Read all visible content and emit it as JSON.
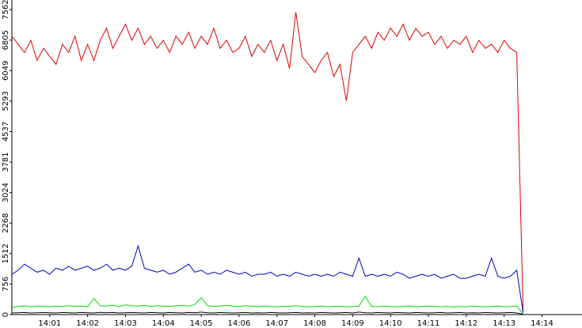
{
  "chart_data": {
    "type": "line",
    "categories": [
      null,
      null,
      null,
      null,
      null,
      null,
      "14:01",
      null,
      null,
      null,
      null,
      null,
      "14:02",
      null,
      null,
      null,
      null,
      null,
      "14:03",
      null,
      null,
      null,
      null,
      null,
      "14:04",
      null,
      null,
      null,
      null,
      null,
      "14:05",
      null,
      null,
      null,
      null,
      null,
      "14:06",
      null,
      null,
      null,
      null,
      null,
      "14:07",
      null,
      null,
      null,
      null,
      null,
      "14:08",
      null,
      null,
      null,
      null,
      null,
      "14:09",
      null,
      null,
      null,
      null,
      null,
      "14:10",
      null,
      null,
      null,
      null,
      null,
      "14:11",
      null,
      null,
      null,
      null,
      null,
      "14:12",
      null,
      null,
      null,
      null,
      null,
      "14:13",
      null,
      null,
      null,
      null,
      null,
      "14:14",
      null,
      null,
      null,
      null,
      null,
      null
    ],
    "series": [
      {
        "color": "#e00000",
        "values": [
          6900,
          6700,
          6500,
          6800,
          6300,
          6600,
          6400,
          6200,
          6700,
          6500,
          6900,
          6300,
          6700,
          6300,
          6800,
          7100,
          6600,
          6900,
          7200,
          6800,
          7100,
          6700,
          6900,
          6600,
          6800,
          6500,
          6900,
          6700,
          7000,
          6600,
          6900,
          6700,
          7100,
          6600,
          6800,
          6500,
          6600,
          6900,
          6400,
          6700,
          6500,
          6800,
          6300,
          6700,
          6100,
          7500,
          6400,
          6200,
          6000,
          6300,
          6500,
          5900,
          6200,
          5300,
          6500,
          6700,
          6900,
          6600,
          7000,
          6800,
          7100,
          6900,
          7200,
          6800,
          7100,
          6900,
          7000,
          6700,
          6900,
          6600,
          6800,
          6700,
          6900,
          6500,
          6800,
          6600,
          6700,
          6500,
          6800,
          6600,
          6500,
          100,
          null,
          null,
          null,
          null,
          null,
          null,
          null,
          null,
          null
        ]
      },
      {
        "color": "#0000c0",
        "values": [
          1000,
          1100,
          1250,
          1150,
          1050,
          1100,
          1000,
          1150,
          1100,
          1200,
          1100,
          1150,
          1200,
          1100,
          1150,
          1250,
          1100,
          1150,
          1100,
          1200,
          1700,
          1150,
          1100,
          1050,
          1100,
          1000,
          1050,
          1150,
          1250,
          1050,
          1100,
          1000,
          1050,
          1000,
          1100,
          1050,
          1000,
          1050,
          950,
          1000,
          1000,
          1050,
          950,
          1000,
          950,
          1050,
          1000,
          950,
          1000,
          950,
          1000,
          950,
          1050,
          1000,
          950,
          1400,
          950,
          1000,
          950,
          1000,
          950,
          1050,
          1000,
          900,
          950,
          1000,
          950,
          1000,
          900,
          950,
          1000,
          900,
          900,
          950,
          1000,
          950,
          1400,
          950,
          900,
          950,
          1100,
          50,
          null,
          null,
          null,
          null,
          null,
          null,
          null,
          null,
          null
        ]
      },
      {
        "color": "#00dd00",
        "values": [
          180,
          200,
          220,
          190,
          210,
          200,
          190,
          210,
          200,
          220,
          200,
          210,
          190,
          400,
          220,
          210,
          230,
          200,
          240,
          220,
          210,
          230,
          200,
          220,
          210,
          200,
          220,
          230,
          210,
          250,
          420,
          220,
          200,
          210,
          230,
          210,
          200,
          220,
          210,
          190,
          210,
          200,
          190,
          210,
          200,
          220,
          200,
          190,
          200,
          210,
          190,
          200,
          210,
          190,
          200,
          210,
          450,
          200,
          190,
          210,
          200,
          190,
          200,
          210,
          190,
          200,
          210,
          200,
          190,
          200,
          180,
          200,
          190,
          210,
          200,
          190,
          200,
          210,
          190,
          200,
          210,
          20,
          null,
          null,
          null,
          null,
          null,
          null,
          null,
          null,
          null
        ]
      },
      {
        "color": "#000000",
        "values": [
          40,
          45,
          50,
          40,
          45,
          50,
          45,
          40,
          50,
          45,
          40,
          50,
          45,
          40,
          55,
          45,
          50,
          40,
          45,
          50,
          45,
          40,
          50,
          45,
          40,
          50,
          45,
          40,
          50,
          45,
          60,
          45,
          40,
          50,
          45,
          40,
          45,
          50,
          40,
          45,
          40,
          50,
          45,
          40,
          45,
          50,
          40,
          45,
          40,
          50,
          45,
          40,
          45,
          50,
          40,
          60,
          45,
          40,
          50,
          45,
          40,
          50,
          45,
          40,
          50,
          45,
          40,
          45,
          50,
          40,
          45,
          50,
          40,
          45,
          40,
          50,
          45,
          40,
          45,
          50,
          40,
          10,
          null,
          null,
          null,
          null,
          null,
          null,
          null,
          null,
          null
        ]
      }
    ],
    "ylim": [
      0,
      7800
    ],
    "yticks": [
      0,
      756,
      1512,
      2268,
      3024,
      3781,
      4537,
      5293,
      6049,
      6805,
      7562
    ]
  }
}
